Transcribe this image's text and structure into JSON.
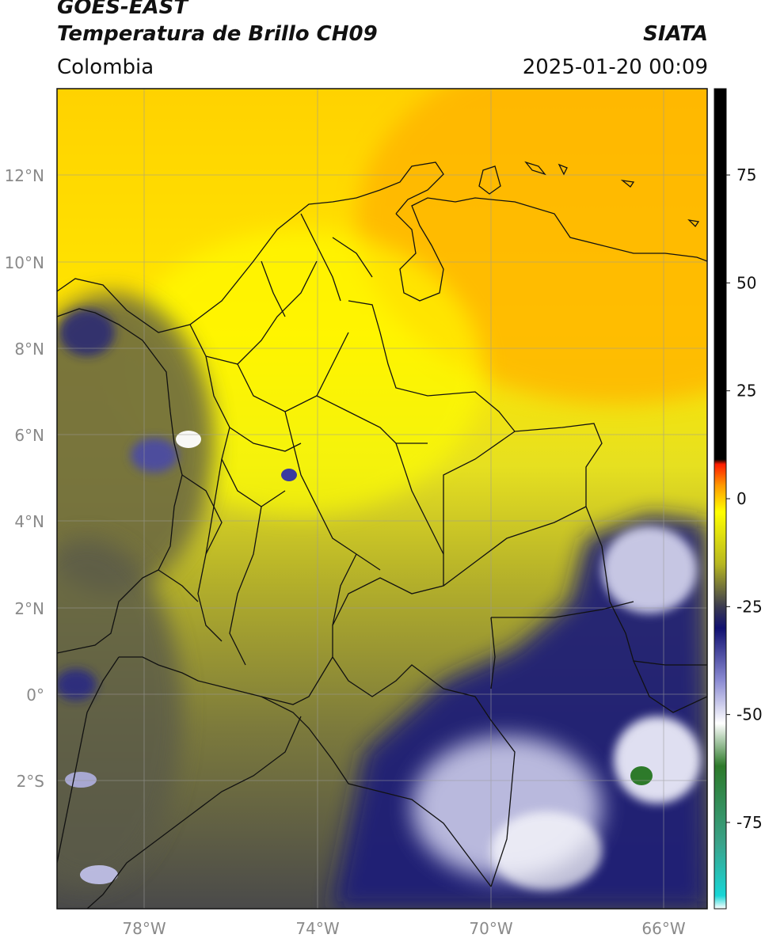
{
  "header": {
    "satellite": "GOES-EAST",
    "product": "Temperatura de Brillo CH09",
    "organization": "SIATA",
    "region": "Colombia",
    "timestamp": "2025-01-20 00:09"
  },
  "map": {
    "lat_labels": [
      "12°N",
      "10°N",
      "8°N",
      "6°N",
      "4°N",
      "2°N",
      "0°",
      "2°S"
    ],
    "lon_labels": [
      "78°W",
      "74°W",
      "70°W",
      "66°W"
    ]
  },
  "colorbar": {
    "ticks": [
      "75",
      "50",
      "25",
      "0",
      "-25",
      "-50",
      "-75"
    ],
    "tick_values": [
      75,
      50,
      25,
      0,
      -25,
      -50,
      -75
    ],
    "range": [
      -95,
      95
    ],
    "stops": [
      {
        "value": -95,
        "color": "#ffffff"
      },
      {
        "value": -92,
        "color": "#18d6d6"
      },
      {
        "value": -80,
        "color": "#3aa38a"
      },
      {
        "value": -62,
        "color": "#2d7a2a"
      },
      {
        "value": -52,
        "color": "#ffffff"
      },
      {
        "value": -42,
        "color": "#8a8ad2"
      },
      {
        "value": -30,
        "color": "#101070"
      },
      {
        "value": -25,
        "color": "#3a3a50"
      },
      {
        "value": -15,
        "color": "#b8b820"
      },
      {
        "value": -3,
        "color": "#ffff00"
      },
      {
        "value": 3,
        "color": "#ff9a00"
      },
      {
        "value": 8,
        "color": "#ff1a00"
      },
      {
        "value": 9,
        "color": "#000000"
      },
      {
        "value": 95,
        "color": "#000000"
      }
    ]
  }
}
